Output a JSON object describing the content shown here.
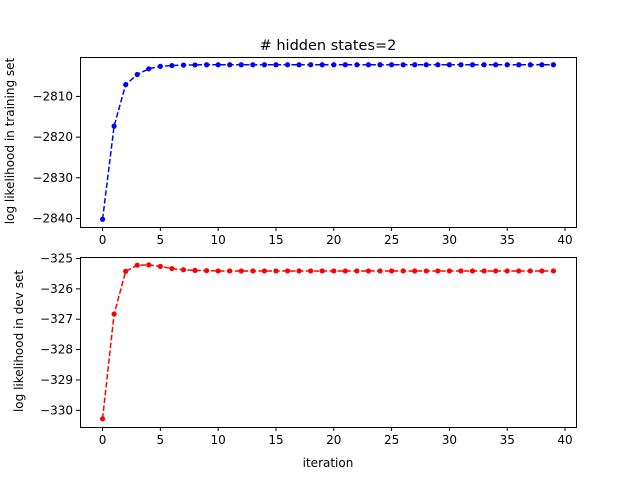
{
  "chart_data": [
    {
      "type": "line",
      "title": "# hidden states=2",
      "xlabel": "",
      "ylabel": "log likelihood in training set",
      "xlim": [
        -1.95,
        40.95
      ],
      "ylim": [
        -2842.1,
        -2800.3
      ],
      "xticks": [
        0,
        5,
        10,
        15,
        20,
        25,
        30,
        35,
        40
      ],
      "yticks": [
        -2840,
        -2830,
        -2820,
        -2810
      ],
      "color": "#0000ff",
      "linestyle": "dashed",
      "marker": "dot",
      "grid": false,
      "x": [
        0,
        1,
        2,
        3,
        4,
        5,
        6,
        7,
        8,
        9,
        10,
        11,
        12,
        13,
        14,
        15,
        16,
        17,
        18,
        19,
        20,
        21,
        22,
        23,
        24,
        25,
        26,
        27,
        28,
        29,
        30,
        31,
        32,
        33,
        34,
        35,
        36,
        37,
        38,
        39
      ],
      "y": [
        -2840.2,
        -2817.3,
        -2807.1,
        -2804.6,
        -2803.2,
        -2802.6,
        -2802.4,
        -2802.3,
        -2802.25,
        -2802.2,
        -2802.2,
        -2802.2,
        -2802.2,
        -2802.2,
        -2802.2,
        -2802.2,
        -2802.2,
        -2802.2,
        -2802.2,
        -2802.2,
        -2802.2,
        -2802.2,
        -2802.2,
        -2802.2,
        -2802.2,
        -2802.2,
        -2802.2,
        -2802.2,
        -2802.2,
        -2802.2,
        -2802.2,
        -2802.2,
        -2802.2,
        -2802.2,
        -2802.2,
        -2802.2,
        -2802.2,
        -2802.2,
        -2802.2,
        -2802.2
      ]
    },
    {
      "type": "line",
      "title": "",
      "xlabel": "iteration",
      "ylabel": "log likelihood in dev set",
      "xlim": [
        -1.95,
        40.95
      ],
      "ylim": [
        -330.55,
        -324.95
      ],
      "xticks": [
        0,
        5,
        10,
        15,
        20,
        25,
        30,
        35,
        40
      ],
      "yticks": [
        -330,
        -329,
        -328,
        -327,
        -326,
        -325
      ],
      "color": "#ff0000",
      "linestyle": "dashed",
      "marker": "dot",
      "grid": false,
      "x": [
        0,
        1,
        2,
        3,
        4,
        5,
        6,
        7,
        8,
        9,
        10,
        11,
        12,
        13,
        14,
        15,
        16,
        17,
        18,
        19,
        20,
        21,
        22,
        23,
        24,
        25,
        26,
        27,
        28,
        29,
        30,
        31,
        32,
        33,
        34,
        35,
        36,
        37,
        38,
        39
      ],
      "y": [
        -330.28,
        -326.83,
        -325.42,
        -325.22,
        -325.21,
        -325.26,
        -325.33,
        -325.37,
        -325.39,
        -325.4,
        -325.41,
        -325.41,
        -325.41,
        -325.41,
        -325.41,
        -325.41,
        -325.41,
        -325.41,
        -325.41,
        -325.41,
        -325.41,
        -325.41,
        -325.41,
        -325.41,
        -325.41,
        -325.41,
        -325.41,
        -325.41,
        -325.41,
        -325.41,
        -325.41,
        -325.41,
        -325.41,
        -325.41,
        -325.41,
        -325.41,
        -325.41,
        -325.41,
        -325.41,
        -325.41
      ]
    }
  ]
}
